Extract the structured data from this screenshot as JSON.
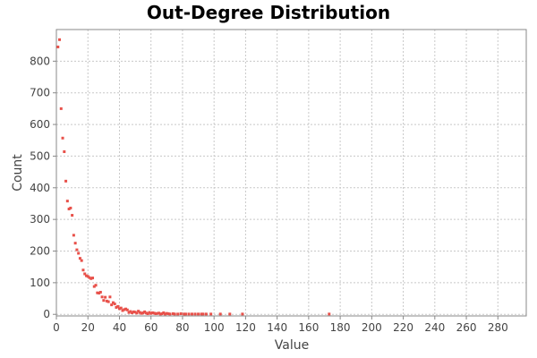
{
  "chart_data": {
    "type": "scatter",
    "title": "Out-Degree Distribution",
    "xlabel": "Value",
    "ylabel": "Count",
    "xlim": [
      0,
      298
    ],
    "ylim": [
      -5,
      900
    ],
    "x_ticks": [
      0,
      20,
      40,
      60,
      80,
      100,
      120,
      140,
      160,
      180,
      200,
      220,
      240,
      260,
      280
    ],
    "y_ticks": [
      0,
      100,
      200,
      300,
      400,
      500,
      600,
      700,
      800
    ],
    "grid": true,
    "point_color": "#e8514a",
    "points": [
      [
        1,
        845
      ],
      [
        2,
        868
      ],
      [
        3,
        650
      ],
      [
        4,
        557
      ],
      [
        5,
        514
      ],
      [
        6,
        421
      ],
      [
        7,
        358
      ],
      [
        8,
        333
      ],
      [
        9,
        336
      ],
      [
        10,
        313
      ],
      [
        11,
        250
      ],
      [
        12,
        225
      ],
      [
        13,
        204
      ],
      [
        14,
        193
      ],
      [
        15,
        177
      ],
      [
        16,
        170
      ],
      [
        17,
        140
      ],
      [
        18,
        128
      ],
      [
        19,
        122
      ],
      [
        20,
        120
      ],
      [
        21,
        116
      ],
      [
        22,
        113
      ],
      [
        23,
        115
      ],
      [
        24,
        88
      ],
      [
        25,
        92
      ],
      [
        26,
        68
      ],
      [
        27,
        67
      ],
      [
        28,
        70
      ],
      [
        29,
        55
      ],
      [
        30,
        44
      ],
      [
        31,
        54
      ],
      [
        32,
        42
      ],
      [
        33,
        40
      ],
      [
        34,
        55
      ],
      [
        35,
        30
      ],
      [
        36,
        37
      ],
      [
        37,
        33
      ],
      [
        38,
        22
      ],
      [
        39,
        25
      ],
      [
        40,
        18
      ],
      [
        41,
        20
      ],
      [
        42,
        12
      ],
      [
        43,
        15
      ],
      [
        44,
        17
      ],
      [
        45,
        14
      ],
      [
        46,
        6
      ],
      [
        47,
        9
      ],
      [
        48,
        5
      ],
      [
        49,
        8
      ],
      [
        50,
        7
      ],
      [
        51,
        4
      ],
      [
        52,
        10
      ],
      [
        53,
        6
      ],
      [
        54,
        3
      ],
      [
        55,
        5
      ],
      [
        56,
        8
      ],
      [
        57,
        4
      ],
      [
        58,
        2
      ],
      [
        59,
        6
      ],
      [
        60,
        3
      ],
      [
        61,
        5
      ],
      [
        62,
        4
      ],
      [
        63,
        2
      ],
      [
        64,
        3
      ],
      [
        65,
        4
      ],
      [
        66,
        1
      ],
      [
        67,
        2
      ],
      [
        68,
        5
      ],
      [
        69,
        1
      ],
      [
        70,
        3
      ],
      [
        71,
        2
      ],
      [
        72,
        1
      ],
      [
        74,
        2
      ],
      [
        75,
        1
      ],
      [
        77,
        1
      ],
      [
        79,
        2
      ],
      [
        81,
        1
      ],
      [
        82,
        1
      ],
      [
        84,
        1
      ],
      [
        86,
        1
      ],
      [
        88,
        1
      ],
      [
        90,
        1
      ],
      [
        92,
        1
      ],
      [
        93,
        1
      ],
      [
        95,
        1
      ],
      [
        98,
        1
      ],
      [
        104,
        1
      ],
      [
        110,
        1
      ],
      [
        118,
        1
      ],
      [
        173,
        1
      ]
    ]
  }
}
